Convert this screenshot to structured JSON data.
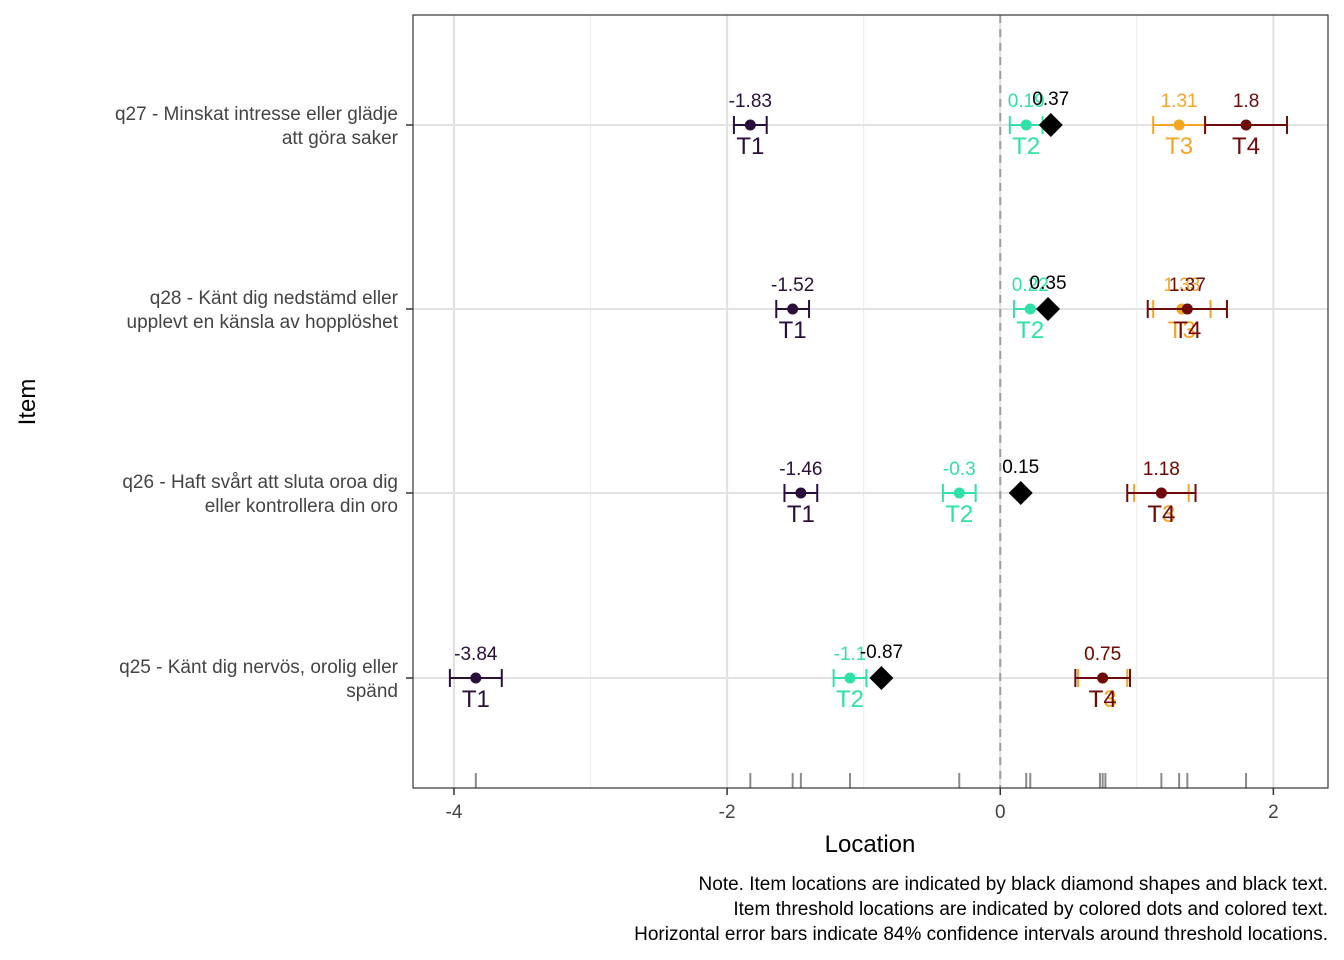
{
  "chart_data": {
    "type": "scatter",
    "xlabel": "Location",
    "ylabel": "Item",
    "xlim": [
      -4.3,
      2.4
    ],
    "x_ticks": [
      -4,
      -2,
      0,
      2
    ],
    "x_tick_labels": [
      "-4",
      "-2",
      "0",
      "2"
    ],
    "reference_line": 0,
    "grid": true,
    "colors": {
      "T1": "#2b0f3b",
      "T2": "#2fe0a9",
      "T3": "#f5a524",
      "T4": "#6e0a0a",
      "item": "#000000"
    },
    "items": [
      {
        "label_lines": [
          "q27 - Minskat intresse eller glädje",
          "att göra saker"
        ],
        "location": 0.37,
        "location_label": "0.37",
        "thresholds": [
          {
            "name": "T1",
            "value": -1.83,
            "value_label": "-1.83",
            "ci": [
              -1.95,
              -1.71
            ]
          },
          {
            "name": "T2",
            "value": 0.19,
            "value_label": "0.19",
            "ci": [
              0.07,
              0.31
            ]
          },
          {
            "name": "T3",
            "value": 1.31,
            "value_label": "1.31",
            "ci": [
              1.12,
              1.5
            ]
          },
          {
            "name": "T4",
            "value": 1.8,
            "value_label": "1.8",
            "ci": [
              1.5,
              2.1
            ]
          }
        ]
      },
      {
        "label_lines": [
          "q28 - Känt dig nedstämd eller",
          "upplevt en känsla av hopplöshet"
        ],
        "location": 0.35,
        "location_label": "0.35",
        "thresholds": [
          {
            "name": "T1",
            "value": -1.52,
            "value_label": "-1.52",
            "ci": [
              -1.64,
              -1.4
            ]
          },
          {
            "name": "T2",
            "value": 0.22,
            "value_label": "0.22",
            "ci": [
              0.1,
              0.34
            ]
          },
          {
            "name": "T3",
            "value": 1.33,
            "value_label": "1.33",
            "ci": [
              1.12,
              1.54
            ]
          },
          {
            "name": "T4",
            "value": 1.37,
            "value_label": "1.37",
            "ci": [
              1.08,
              1.66
            ]
          }
        ]
      },
      {
        "label_lines": [
          "q26 - Haft svårt att sluta oroa dig",
          "eller kontrollera din oro"
        ],
        "location": 0.15,
        "location_label": "0.15",
        "thresholds": [
          {
            "name": "T1",
            "value": -1.46,
            "value_label": "-1.46",
            "ci": [
              -1.58,
              -1.34
            ]
          },
          {
            "name": "T2",
            "value": -0.3,
            "value_label": "-0.3",
            "ci": [
              -0.42,
              -0.18
            ]
          },
          {
            "name": "T3",
            "value": 1.18,
            "value_label": "1.18",
            "ci": [
              0.98,
              1.38
            ]
          },
          {
            "name": "T4",
            "value": 1.18,
            "value_label": "1.18",
            "ci": [
              0.93,
              1.43
            ]
          }
        ]
      },
      {
        "label_lines": [
          "q25 - Känt dig nervös, orolig eller",
          "spänd"
        ],
        "location": -0.87,
        "location_label": "-0.87",
        "thresholds": [
          {
            "name": "T1",
            "value": -3.84,
            "value_label": "-3.84",
            "ci": [
              -4.03,
              -3.65
            ]
          },
          {
            "name": "T2",
            "value": -1.1,
            "value_label": "-1.1",
            "ci": [
              -1.22,
              -0.98
            ]
          },
          {
            "name": "T3",
            "value": 0.75,
            "value_label": "0.75",
            "ci": [
              0.57,
              0.93
            ]
          },
          {
            "name": "T4",
            "value": 0.75,
            "value_label": "0.75",
            "ci": [
              0.55,
              0.95
            ]
          }
        ]
      }
    ],
    "rug_values": [
      -3.84,
      -1.83,
      -1.52,
      -1.46,
      -1.1,
      -0.3,
      0.19,
      0.22,
      0.73,
      0.75,
      0.77,
      1.18,
      1.31,
      1.37,
      1.8
    ]
  },
  "note_lines": [
    "Note. Item locations are indicated by black diamond shapes and black text.",
    "Item threshold locations are indicated by colored dots and colored text.",
    "Horizontal error bars indicate 84% confidence intervals around threshold locations."
  ]
}
